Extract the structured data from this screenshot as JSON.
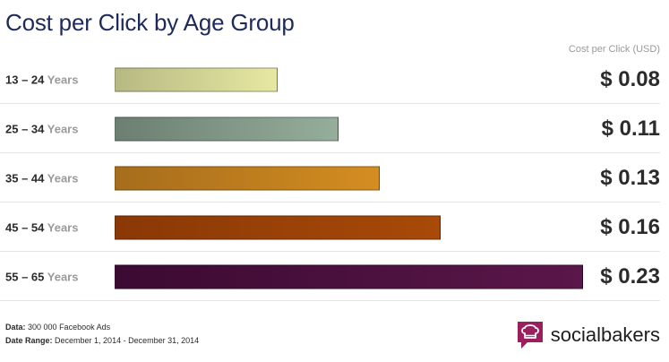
{
  "colors": {
    "title": "#1f2a5c",
    "brand": "#9b1f5e",
    "bars": [
      [
        "#b7b983",
        "#e6e8a2"
      ],
      [
        "#6c7f72",
        "#95ae9b"
      ],
      [
        "#a66d1c",
        "#d48d20"
      ],
      [
        "#8a3806",
        "#a84a08"
      ],
      [
        "#3b0a32",
        "#5a1749"
      ]
    ]
  },
  "chart_data": {
    "type": "bar",
    "orientation": "horizontal",
    "title": "Cost per Click by Age Group",
    "value_header": "Cost per Click (USD)",
    "categories": [
      {
        "range": "13 – 24",
        "unit": "Years"
      },
      {
        "range": "25 – 34",
        "unit": "Years"
      },
      {
        "range": "35 – 44",
        "unit": "Years"
      },
      {
        "range": "45 – 54",
        "unit": "Years"
      },
      {
        "range": "55 – 65",
        "unit": "Years"
      }
    ],
    "values": [
      0.08,
      0.11,
      0.13,
      0.16,
      0.23
    ],
    "value_labels": [
      "$ 0.08",
      "$ 0.11",
      "$ 0.13",
      "$ 0.16",
      "$ 0.23"
    ],
    "xlim": [
      0,
      0.23
    ]
  },
  "footer": {
    "data_label": "Data:",
    "data_value": "300 000 Facebook Ads",
    "range_label": "Date Range:",
    "range_value": "December 1, 2014 - December 31, 2014"
  },
  "brand": {
    "name": "socialbakers",
    "icon": "chef-hat-speech-bubble-icon"
  }
}
